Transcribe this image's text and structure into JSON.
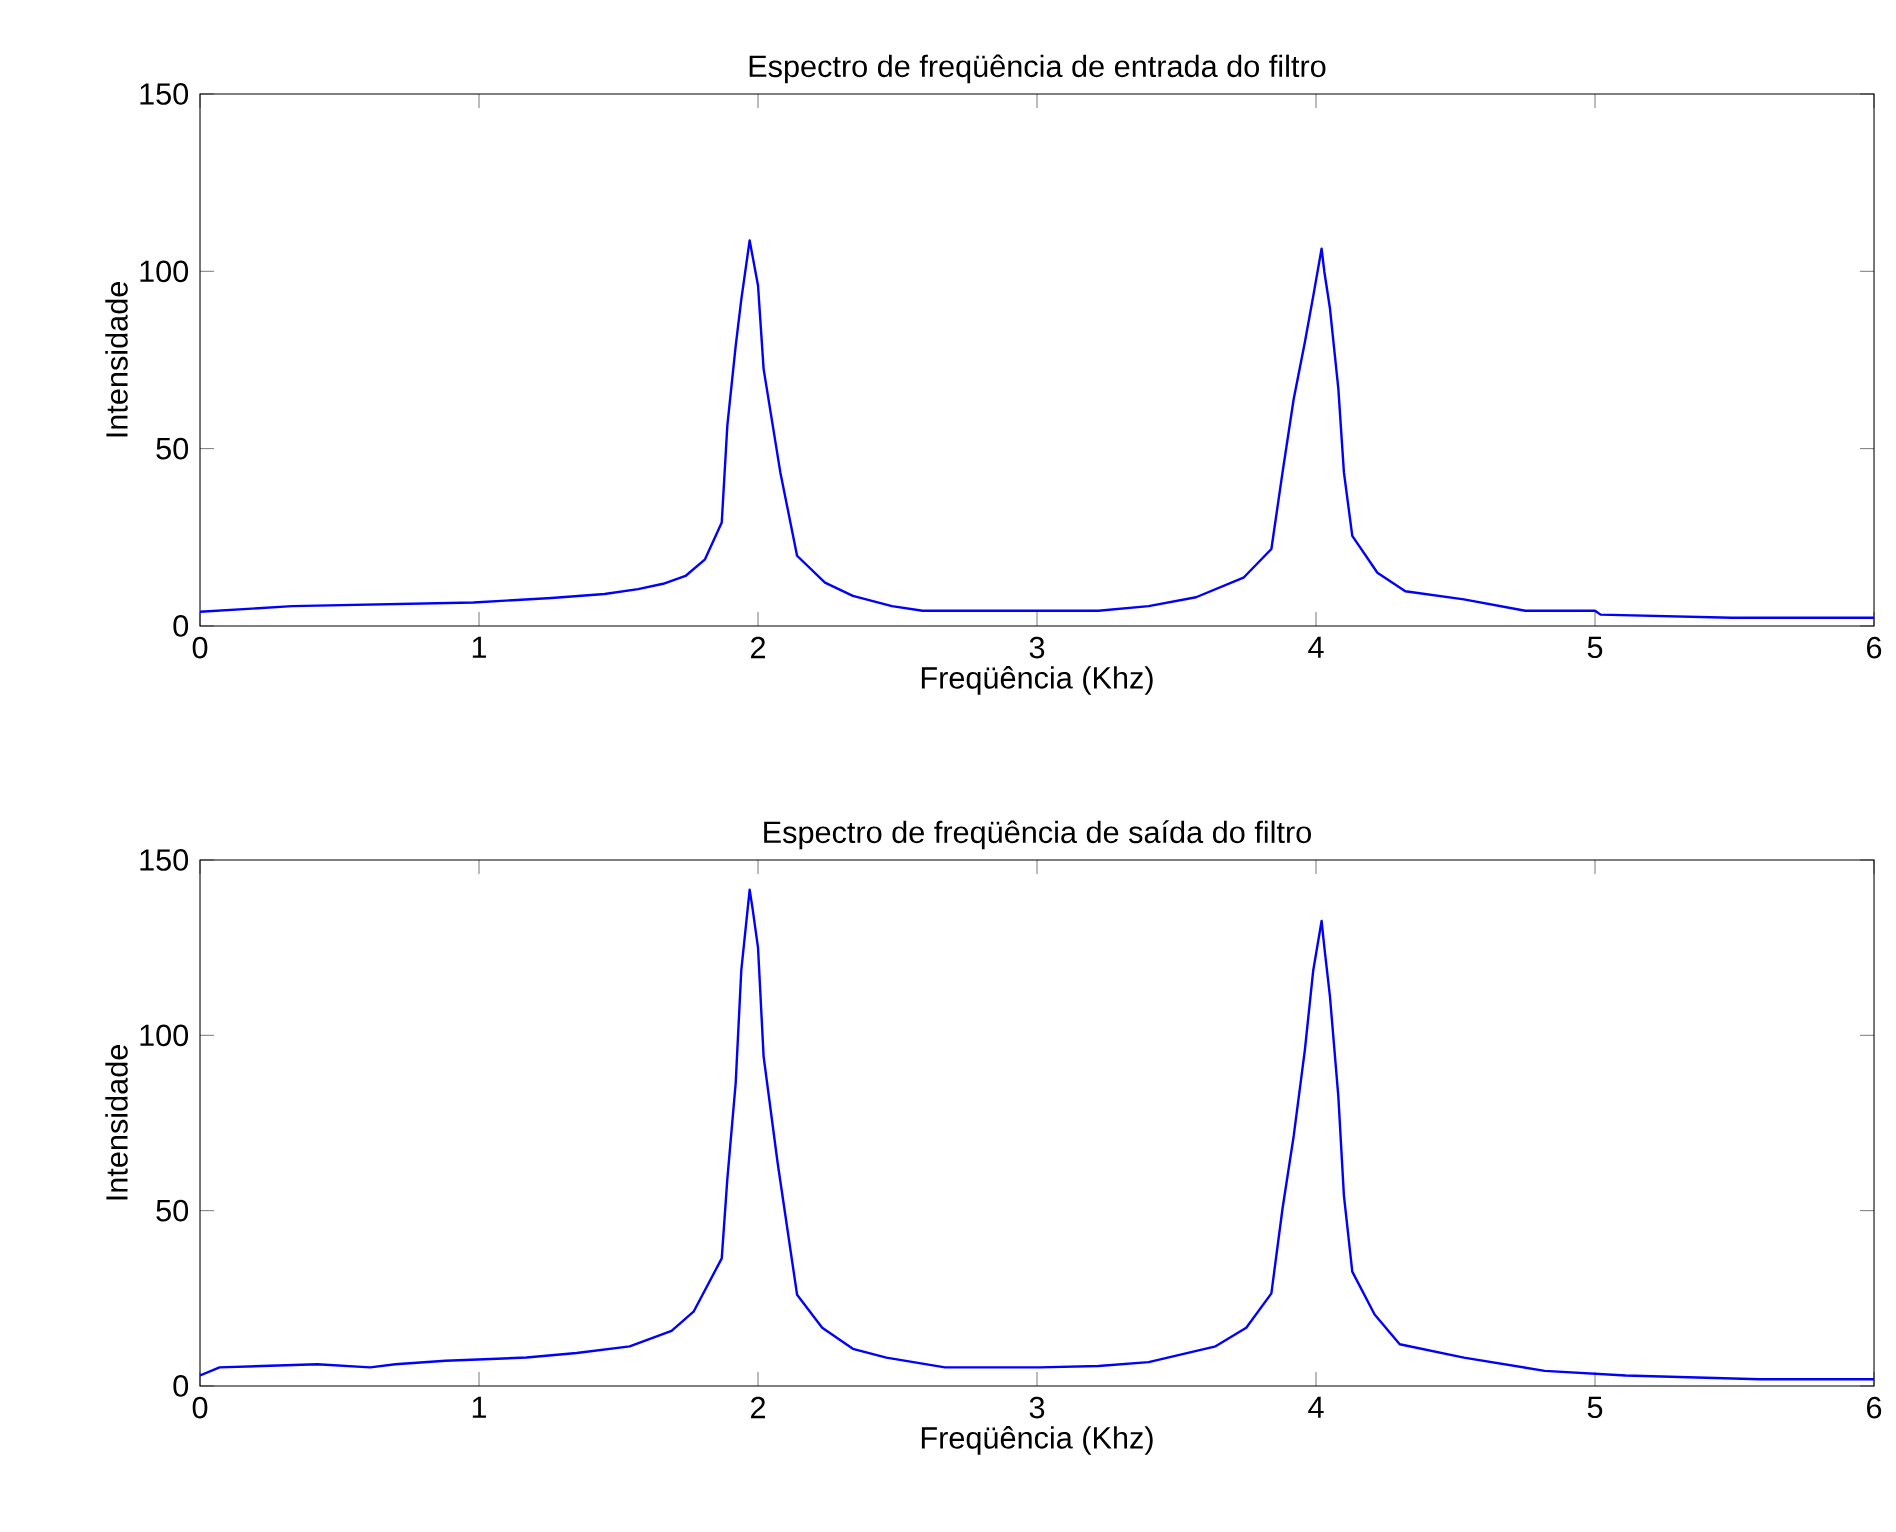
{
  "chart_data": [
    {
      "type": "line",
      "title": "Espectro de freqüência de entrada do filtro",
      "xlabel": "Freqüência (Khz)",
      "ylabel": "Intensidade",
      "color": "#0000ff",
      "xlim": [
        0,
        6
      ],
      "ylim": [
        0,
        150
      ],
      "xticks": [
        0,
        1,
        2,
        3,
        4,
        5,
        6
      ],
      "yticks": [
        0,
        50,
        100,
        150
      ],
      "x": [
        0,
        0.33,
        0.98,
        1.26,
        1.45,
        1.57,
        1.66,
        1.74,
        1.81,
        1.87,
        1.89,
        1.92,
        1.94,
        1.97,
        1.98,
        2.0,
        2.02,
        2.08,
        2.14,
        2.24,
        2.34,
        2.48,
        2.59,
        3.01,
        3.22,
        3.4,
        3.57,
        3.74,
        3.84,
        3.88,
        3.92,
        3.96,
        3.99,
        4.02,
        4.03,
        4.05,
        4.08,
        4.1,
        4.13,
        4.22,
        4.32,
        4.53,
        4.75,
        5.0,
        5.02,
        5.49,
        6.0
      ],
      "values": [
        4,
        5.6,
        6.6,
        7.9,
        9,
        10.4,
        11.9,
        14.1,
        18.8,
        29.2,
        56.5,
        79,
        92,
        108.7,
        104.5,
        96,
        72.5,
        43.3,
        19.8,
        12.2,
        8.5,
        5.6,
        4.3,
        4.3,
        4.3,
        5.6,
        8.1,
        13.6,
        21.7,
        43.3,
        64,
        80,
        93,
        106.4,
        99.8,
        89.5,
        66.9,
        43.3,
        25.4,
        15,
        9.8,
        7.5,
        4.3,
        4.3,
        3.2,
        2.3,
        2.3
      ]
    },
    {
      "type": "line",
      "title": "Espectro de freqüência de saída do filtro",
      "xlabel": "Freqüência (Khz)",
      "ylabel": "Intensidade",
      "color": "#0000ff",
      "xlim": [
        0,
        6
      ],
      "ylim": [
        0,
        150
      ],
      "xticks": [
        0,
        1,
        2,
        3,
        4,
        5,
        6
      ],
      "yticks": [
        0,
        50,
        100,
        150
      ],
      "x": [
        0,
        0.07,
        0.42,
        0.61,
        0.7,
        0.88,
        1.17,
        1.35,
        1.54,
        1.69,
        1.77,
        1.87,
        1.89,
        1.92,
        1.94,
        1.97,
        1.98,
        2.0,
        2.02,
        2.07,
        2.14,
        2.23,
        2.34,
        2.46,
        2.67,
        3.01,
        3.22,
        3.4,
        3.64,
        3.75,
        3.84,
        3.88,
        3.92,
        3.96,
        3.99,
        4.02,
        4.03,
        4.05,
        4.08,
        4.1,
        4.13,
        4.21,
        4.3,
        4.53,
        4.82,
        5.11,
        5.59,
        6.0
      ],
      "values": [
        3,
        5.3,
        6.2,
        5.3,
        6.2,
        7.2,
        8.1,
        9.4,
        11.3,
        15.7,
        21.3,
        36.4,
        59,
        86.4,
        118.5,
        141.5,
        136.4,
        125,
        94,
        63.8,
        26,
        16.6,
        10.6,
        8.1,
        5.3,
        5.3,
        5.7,
        6.8,
        11.3,
        16.6,
        26.4,
        50.6,
        71.3,
        95.8,
        118.5,
        132.6,
        125,
        111,
        82.6,
        54.3,
        32.6,
        20.4,
        11.9,
        8.1,
        4.3,
        3.0,
        1.9,
        1.9
      ]
    }
  ]
}
